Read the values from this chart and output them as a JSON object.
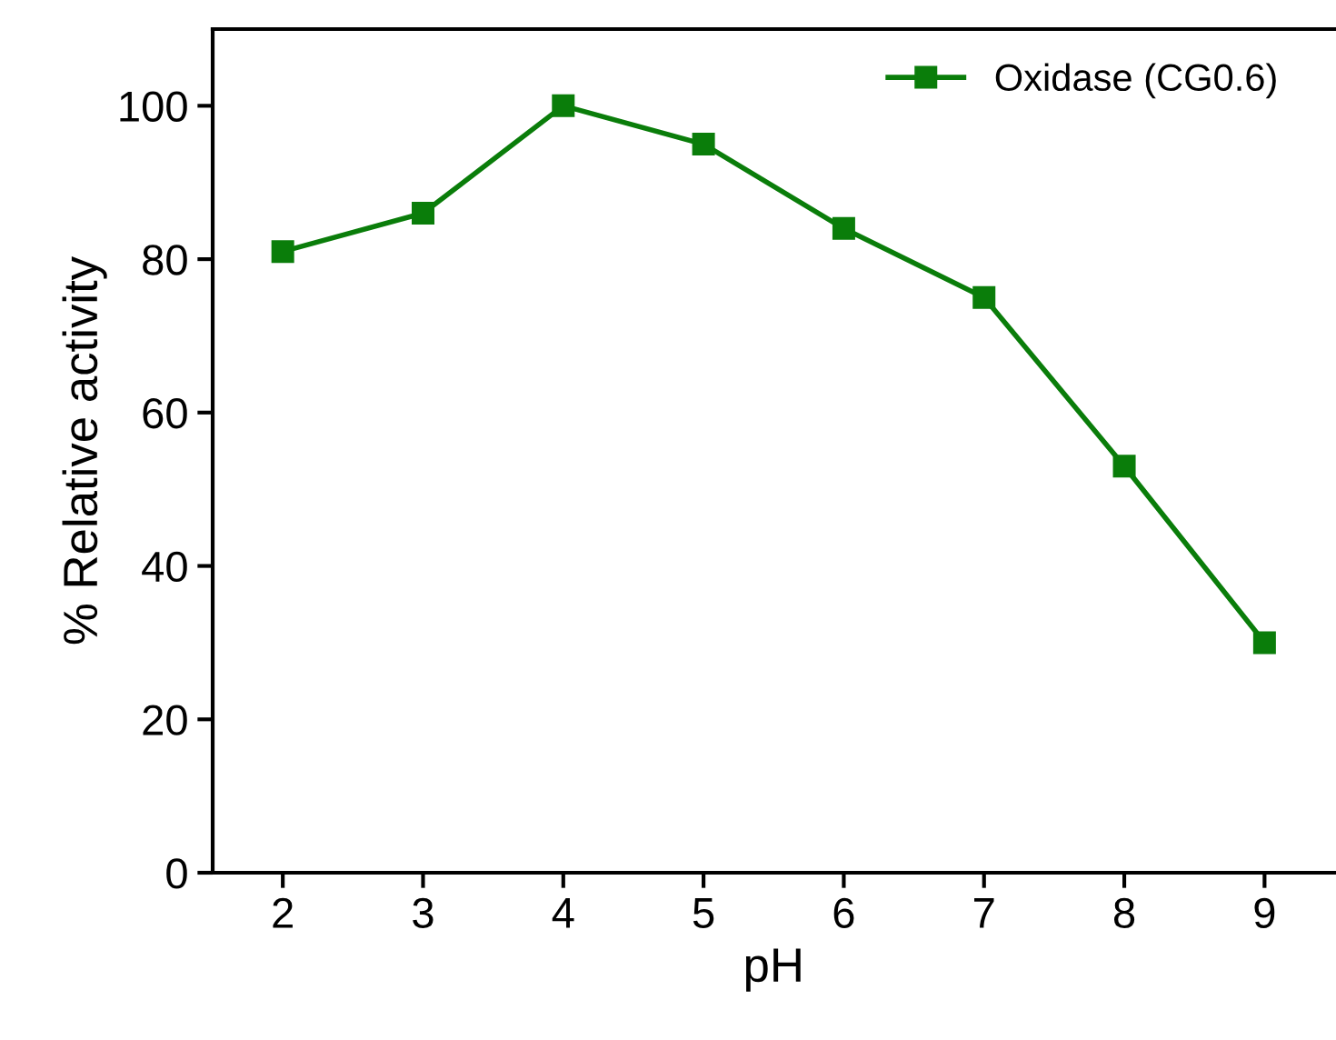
{
  "chart_data": {
    "type": "line",
    "xlabel": "pH",
    "ylabel": "% Relative activity",
    "x": [
      2,
      3,
      4,
      5,
      6,
      7,
      8,
      9
    ],
    "series": [
      {
        "name": "Oxidase (CG0.6)",
        "color": "#0a7d0a",
        "values": [
          81,
          86,
          100,
          95,
          84,
          75,
          53,
          30
        ]
      }
    ],
    "xlim": [
      1.5,
      9.5
    ],
    "xticks": [
      2,
      3,
      4,
      5,
      6,
      7,
      8,
      9
    ],
    "ylim": [
      0,
      110
    ],
    "yticks": [
      0,
      20,
      40,
      60,
      80,
      100
    ],
    "marker": "square",
    "line_style": "solid",
    "grid": false,
    "legend": "top right"
  }
}
